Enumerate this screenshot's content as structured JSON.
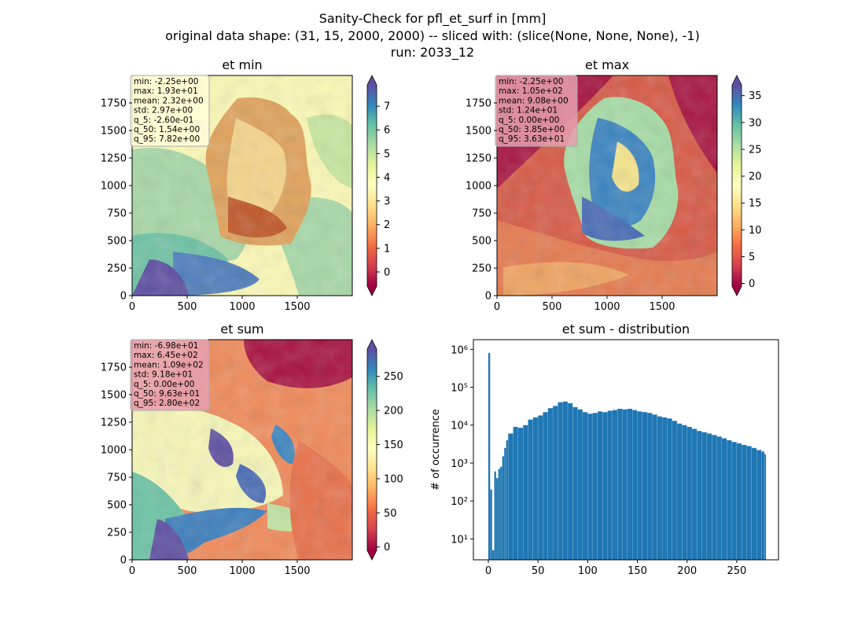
{
  "figure": {
    "title_lines": [
      "Sanity-Check for pfl_et_surf in [mm]",
      "original data shape: (31, 15, 2000, 2000) -- sliced with: (slice(None, None, None), -1)",
      "run: 2033_12"
    ]
  },
  "chart_data": [
    {
      "type": "heatmap",
      "title": "et min",
      "colormap": "Spectral",
      "xlim": [
        0,
        2000
      ],
      "ylim": [
        0,
        2000
      ],
      "xticks": [
        "0",
        "500",
        "1000",
        "1500"
      ],
      "yticks": [
        "0",
        "250",
        "500",
        "750",
        "1000",
        "1250",
        "1500",
        "1750"
      ],
      "colorbar": {
        "min": -0.6,
        "max": 7.9,
        "ticks": [
          "0",
          "1",
          "2",
          "3",
          "4",
          "5",
          "6",
          "7"
        ],
        "extend": "both"
      },
      "stats": [
        "min: -2.25e+00",
        "max: 1.93e+01",
        "mean: 2.32e+00",
        "std: 2.97e+00",
        "q_5: -2.60e-01",
        "q_50: 1.54e+00",
        "q_95: 7.82e+00"
      ],
      "stats_box_color": "#fffdd8"
    },
    {
      "type": "heatmap",
      "title": "et max",
      "colormap": "Spectral",
      "xlim": [
        0,
        2000
      ],
      "ylim": [
        0,
        2000
      ],
      "xticks": [
        "0",
        "500",
        "1000",
        "1500"
      ],
      "yticks": [
        "0",
        "250",
        "500",
        "750",
        "1000",
        "1250",
        "1500",
        "1750"
      ],
      "colorbar": {
        "min": -0.5,
        "max": 37,
        "ticks": [
          "0",
          "5",
          "10",
          "15",
          "20",
          "25",
          "30",
          "35"
        ],
        "extend": "both"
      },
      "stats": [
        "min: -2.25e+00",
        "max: 1.05e+02",
        "mean: 9.08e+00",
        "std: 1.24e+01",
        "q_5: 0.00e+00",
        "q_50: 3.85e+00",
        "q_95: 3.63e+01"
      ],
      "stats_box_color": "#e6a0b0"
    },
    {
      "type": "heatmap",
      "title": "et sum",
      "colormap": "Spectral",
      "xlim": [
        0,
        2000
      ],
      "ylim": [
        0,
        2000
      ],
      "xticks": [
        "0",
        "500",
        "1000",
        "1500"
      ],
      "yticks": [
        "0",
        "250",
        "500",
        "750",
        "1000",
        "1250",
        "1500",
        "1750"
      ],
      "colorbar": {
        "min": -5,
        "max": 290,
        "ticks": [
          "0",
          "50",
          "100",
          "150",
          "200",
          "250"
        ],
        "extend": "both"
      },
      "stats": [
        "min: -6.98e+01",
        "max: 6.45e+02",
        "mean: 1.09e+02",
        "std: 9.18e+01",
        "q_5: 0.00e+00",
        "q_50: 9.63e+01",
        "q_95: 2.80e+02"
      ],
      "stats_box_color": "#e6a0b0"
    },
    {
      "type": "bar",
      "title": "et sum - distribution",
      "ylabel": "# of occurrence",
      "xlabel": "",
      "yscale": "log",
      "xlim": [
        -15,
        292
      ],
      "ylim": [
        2.8,
        1800000
      ],
      "xticks": [
        0,
        50,
        100,
        150,
        200,
        250
      ],
      "yticks": [
        10,
        100,
        1000,
        10000,
        100000,
        1000000
      ],
      "ytick_labels": [
        "10¹",
        "10²",
        "10³",
        "10⁴",
        "10⁵",
        "10⁶"
      ],
      "color": "#1f77b4",
      "x": [
        0,
        2,
        4,
        6,
        8,
        10,
        12,
        14,
        16,
        18,
        20,
        25,
        30,
        35,
        40,
        45,
        50,
        55,
        60,
        65,
        70,
        75,
        80,
        85,
        90,
        95,
        100,
        105,
        110,
        115,
        120,
        125,
        130,
        135,
        140,
        145,
        150,
        155,
        160,
        165,
        170,
        175,
        180,
        185,
        190,
        195,
        200,
        205,
        210,
        215,
        220,
        225,
        230,
        235,
        240,
        245,
        250,
        255,
        260,
        265,
        270,
        275,
        278
      ],
      "values": [
        800000,
        200,
        5,
        600,
        400,
        700,
        800,
        1500,
        2500,
        4000,
        6000,
        9000,
        8500,
        10000,
        14000,
        16000,
        18000,
        22000,
        28000,
        32000,
        40000,
        42000,
        38000,
        30000,
        26000,
        22000,
        20000,
        21000,
        23000,
        22000,
        24000,
        25000,
        27000,
        26000,
        27000,
        25000,
        23000,
        22000,
        21000,
        19000,
        17000,
        16000,
        15000,
        13000,
        11000,
        10000,
        9000,
        8000,
        7000,
        6500,
        6000,
        5500,
        5000,
        4500,
        4000,
        3600,
        3300,
        3000,
        2800,
        2500,
        2200,
        2000,
        1700
      ]
    }
  ]
}
